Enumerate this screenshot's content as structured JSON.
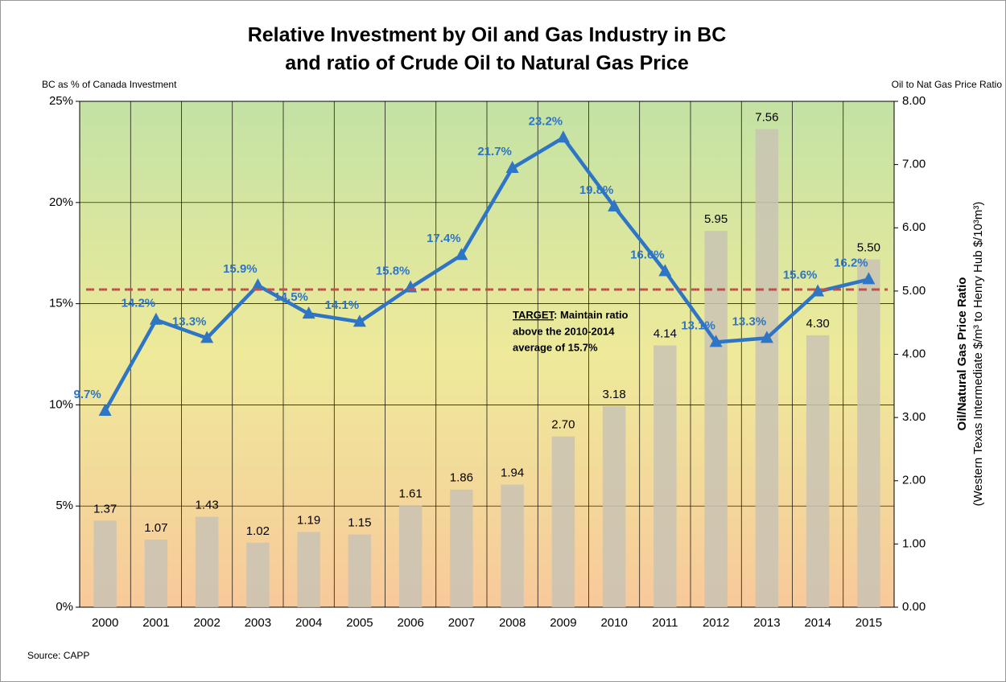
{
  "chart_data": {
    "type": "combo",
    "title": [
      "Relative Investment by Oil and Gas Industry in BC",
      "and ratio of Crude Oil to Natural Gas Price"
    ],
    "y_axis_label": "BC as  % of Canada Investment",
    "y2_axis_top_label": "Oil to Nat Gas Price Ratio",
    "y2_axis_label": [
      "Oil/Natural Gas Price Ratio",
      "(Western Texas Intermediate $/m³ to Henry Hub $/10³m³)"
    ],
    "source": "Source: CAPP",
    "categories": [
      "2000",
      "2001",
      "2002",
      "2003",
      "2004",
      "2005",
      "2006",
      "2007",
      "2008",
      "2009",
      "2010",
      "2011",
      "2012",
      "2013",
      "2014",
      "2015"
    ],
    "series": [
      {
        "type": "bar",
        "axis": "y2",
        "color": "#c9c3b4",
        "values": [
          1.37,
          1.07,
          1.43,
          1.02,
          1.19,
          1.15,
          1.61,
          1.86,
          1.94,
          2.7,
          3.18,
          4.14,
          5.95,
          7.56,
          4.3,
          5.5
        ],
        "value_labels": [
          "1.37",
          "1.07",
          "1.43",
          "1.02",
          "1.19",
          "1.15",
          "1.61",
          "1.86",
          "1.94",
          "2.70",
          "3.18",
          "4.14",
          "5.95",
          "7.56",
          "4.30",
          "5.50"
        ]
      },
      {
        "type": "line",
        "axis": "y",
        "color": "#2e75c6",
        "values": [
          9.7,
          14.2,
          13.3,
          15.9,
          14.5,
          14.1,
          15.8,
          17.4,
          21.7,
          23.2,
          19.8,
          16.6,
          13.1,
          13.3,
          15.6,
          16.2
        ],
        "value_labels": [
          "9.7%",
          "14.2%",
          "13.3%",
          "15.9%",
          "14.5%",
          "14.1%",
          "15.8%",
          "17.4%",
          "21.7%",
          "23.2%",
          "19.8%",
          "16.6%",
          "13.1%",
          "13.3%",
          "15.6%",
          "16.2%"
        ]
      }
    ],
    "target_value": 15.7,
    "target_color": "#c0504d",
    "annotation": {
      "label": "TARGET",
      "lines": [
        ": Maintain ratio",
        "above the 2010-2014",
        "average of  15.7%"
      ]
    },
    "ylim": [
      0,
      25
    ],
    "yticks": [
      {
        "value": 0,
        "label": "0%"
      },
      {
        "value": 5,
        "label": "5%"
      },
      {
        "value": 10,
        "label": "10%"
      },
      {
        "value": 15,
        "label": "15%"
      },
      {
        "value": 20,
        "label": "20%"
      },
      {
        "value": 25,
        "label": "25%"
      }
    ],
    "y2lim": [
      0,
      8
    ],
    "y2ticks": [
      {
        "value": 0,
        "label": "0.00"
      },
      {
        "value": 1,
        "label": "1.00"
      },
      {
        "value": 2,
        "label": "2.00"
      },
      {
        "value": 3,
        "label": "3.00"
      },
      {
        "value": 4,
        "label": "4.00"
      },
      {
        "value": 5,
        "label": "5.00"
      },
      {
        "value": 6,
        "label": "6.00"
      },
      {
        "value": 7,
        "label": "7.00"
      },
      {
        "value": 8,
        "label": "8.00"
      }
    ],
    "grid": true
  }
}
